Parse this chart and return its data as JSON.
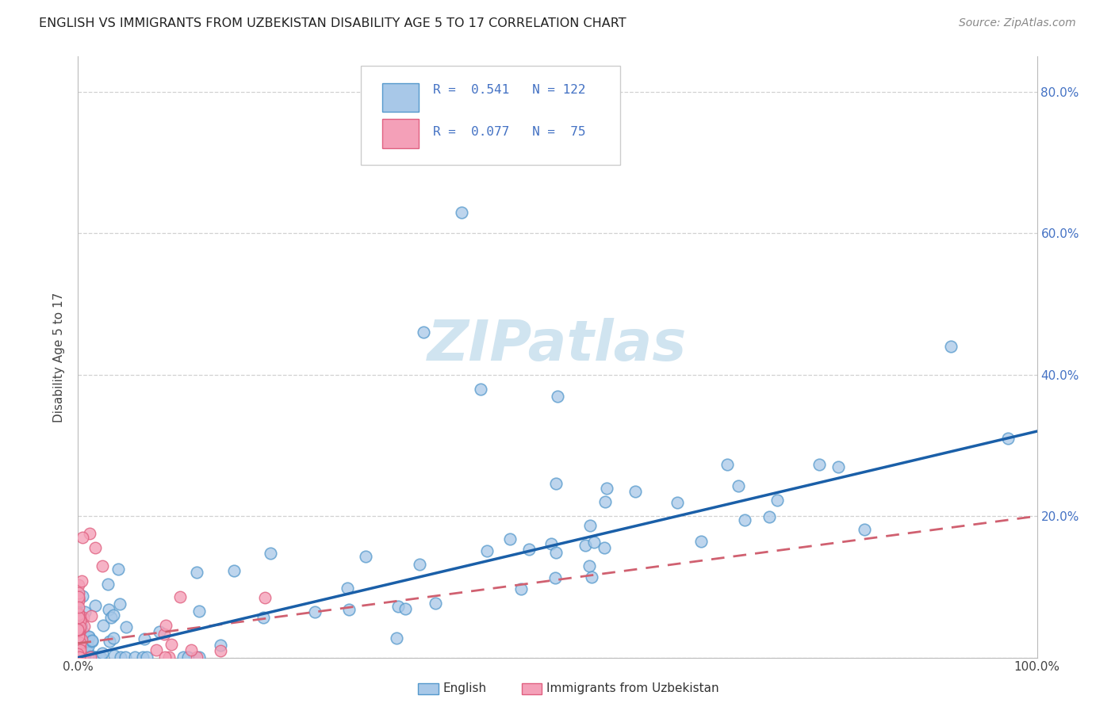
{
  "title": "ENGLISH VS IMMIGRANTS FROM UZBEKISTAN DISABILITY AGE 5 TO 17 CORRELATION CHART",
  "source": "Source: ZipAtlas.com",
  "ylabel": "Disability Age 5 to 17",
  "xlim": [
    0,
    1.0
  ],
  "ylim": [
    0,
    0.85
  ],
  "xtick_positions": [
    0.0,
    0.2,
    0.4,
    0.6,
    0.8,
    1.0
  ],
  "xticklabels": [
    "0.0%",
    "",
    "",
    "",
    "",
    "100.0%"
  ],
  "ytick_positions": [
    0.0,
    0.2,
    0.4,
    0.6,
    0.8
  ],
  "yticklabels_right": [
    "",
    "20.0%",
    "40.0%",
    "60.0%",
    "80.0%"
  ],
  "blue_color": "#a8c8e8",
  "blue_edge": "#5599cc",
  "pink_color": "#f4a0b8",
  "pink_edge": "#e06080",
  "line_blue": "#1a5fa8",
  "line_pink": "#d06070",
  "watermark_text": "ZIPatlas",
  "watermark_color": "#d0e4f0",
  "legend_r1": "R = 0.541",
  "legend_n1": "N = 122",
  "legend_r2": "R = 0.077",
  "legend_n2": "N =  75",
  "slope_blue": 0.32,
  "intercept_blue": 0.0,
  "slope_pink": 0.18,
  "intercept_pink": 0.02,
  "grid_color": "#cccccc",
  "tick_color": "#4472c4",
  "title_color": "#222222",
  "source_color": "#888888"
}
